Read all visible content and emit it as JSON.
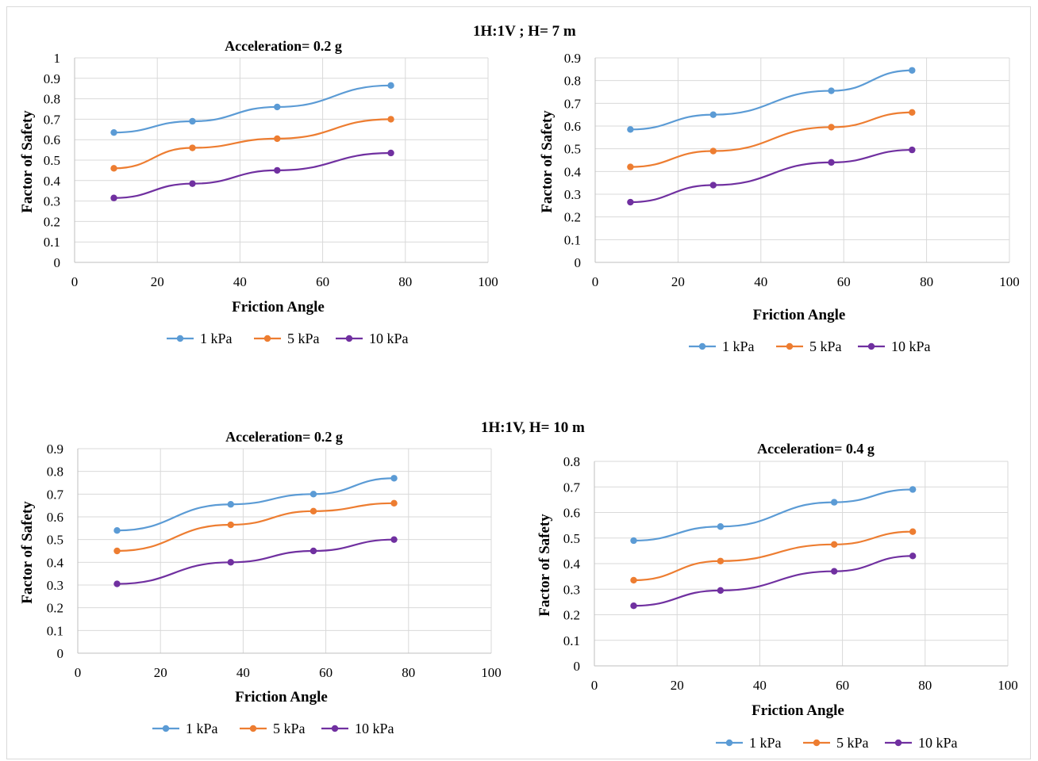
{
  "section_titles": {
    "top": "1H:1V ; H= 7 m",
    "bottom": "1H:1V, H= 10 m"
  },
  "colors": {
    "1 kPa": "#5b9bd5",
    "5 kPa": "#ed7d31",
    "10 kPa": "#7030a0",
    "grid": "#d9d9d9",
    "axis": "#bfbfbf"
  },
  "chart_data": [
    {
      "type": "line",
      "title": "Acceleration= 0.2 g",
      "xlabel": "Friction Angle",
      "ylabel": "Factor of Safety",
      "xlim": [
        0,
        100
      ],
      "ylim": [
        0,
        1
      ],
      "xticks": [
        "0",
        "20",
        "40",
        "60",
        "80",
        "100"
      ],
      "yticks": [
        "0",
        "0.1",
        "0.2",
        "0.3",
        "0.4",
        "0.5",
        "0.6",
        "0.7",
        "0.8",
        "0.9",
        "1"
      ],
      "legend_position": "bottom",
      "grid": true,
      "series": [
        {
          "name": "1 kPa",
          "x": [
            9.5,
            28.5,
            49,
            76.5
          ],
          "y": [
            0.635,
            0.69,
            0.76,
            0.865
          ]
        },
        {
          "name": "5 kPa",
          "x": [
            9.5,
            28.5,
            49,
            76.5
          ],
          "y": [
            0.46,
            0.56,
            0.605,
            0.7
          ]
        },
        {
          "name": "10 kPa",
          "x": [
            9.5,
            28.5,
            49,
            76.5
          ],
          "y": [
            0.315,
            0.385,
            0.45,
            0.535
          ]
        }
      ]
    },
    {
      "type": "line",
      "title": "",
      "xlabel": "Friction Angle",
      "ylabel": "Factor of Safety",
      "xlim": [
        0,
        100
      ],
      "ylim": [
        0,
        0.9
      ],
      "xticks": [
        "0",
        "20",
        "40",
        "60",
        "80",
        "100"
      ],
      "yticks": [
        "0",
        "0.1",
        "0.2",
        "0.3",
        "0.4",
        "0.5",
        "0.6",
        "0.7",
        "0.8",
        "0.9"
      ],
      "legend_position": "bottom",
      "grid": true,
      "series": [
        {
          "name": "1 kPa",
          "x": [
            8.5,
            28.5,
            57,
            76.5
          ],
          "y": [
            0.585,
            0.65,
            0.755,
            0.845
          ]
        },
        {
          "name": "5 kPa",
          "x": [
            8.5,
            28.5,
            57,
            76.5
          ],
          "y": [
            0.42,
            0.49,
            0.595,
            0.66
          ]
        },
        {
          "name": "10 kPa",
          "x": [
            8.5,
            28.5,
            57,
            76.5
          ],
          "y": [
            0.265,
            0.34,
            0.44,
            0.495
          ]
        }
      ]
    },
    {
      "type": "line",
      "title": "Acceleration= 0.2 g",
      "xlabel": "Friction Angle",
      "ylabel": "Factor of Safety",
      "xlim": [
        0,
        100
      ],
      "ylim": [
        0,
        0.9
      ],
      "xticks": [
        "0",
        "20",
        "40",
        "60",
        "80",
        "100"
      ],
      "yticks": [
        "0",
        "0.1",
        "0.2",
        "0.3",
        "0.4",
        "0.5",
        "0.6",
        "0.7",
        "0.8",
        "0.9"
      ],
      "legend_position": "bottom",
      "grid": true,
      "series": [
        {
          "name": "1 kPa",
          "x": [
            9.5,
            37,
            57,
            76.5
          ],
          "y": [
            0.54,
            0.655,
            0.7,
            0.77
          ]
        },
        {
          "name": "5 kPa",
          "x": [
            9.5,
            37,
            57,
            76.5
          ],
          "y": [
            0.45,
            0.565,
            0.625,
            0.66
          ]
        },
        {
          "name": "10 kPa",
          "x": [
            9.5,
            37,
            57,
            76.5
          ],
          "y": [
            0.305,
            0.4,
            0.45,
            0.5
          ]
        }
      ]
    },
    {
      "type": "line",
      "title": "Acceleration= 0.4 g",
      "xlabel": "Friction Angle",
      "ylabel": "Factor of Safety",
      "xlim": [
        0,
        100
      ],
      "ylim": [
        0,
        0.8
      ],
      "xticks": [
        "0",
        "20",
        "40",
        "60",
        "80",
        "100"
      ],
      "yticks": [
        "0",
        "0.1",
        "0.2",
        "0.3",
        "0.4",
        "0.5",
        "0.6",
        "0.7",
        "0.8"
      ],
      "legend_position": "bottom",
      "grid": true,
      "series": [
        {
          "name": "1 kPa",
          "x": [
            9.5,
            30.5,
            58,
            77
          ],
          "y": [
            0.49,
            0.545,
            0.64,
            0.69
          ]
        },
        {
          "name": "5 kPa",
          "x": [
            9.5,
            30.5,
            58,
            77
          ],
          "y": [
            0.335,
            0.41,
            0.475,
            0.525
          ]
        },
        {
          "name": "10 kPa",
          "x": [
            9.5,
            30.5,
            58,
            77
          ],
          "y": [
            0.235,
            0.295,
            0.37,
            0.43
          ]
        }
      ]
    }
  ]
}
